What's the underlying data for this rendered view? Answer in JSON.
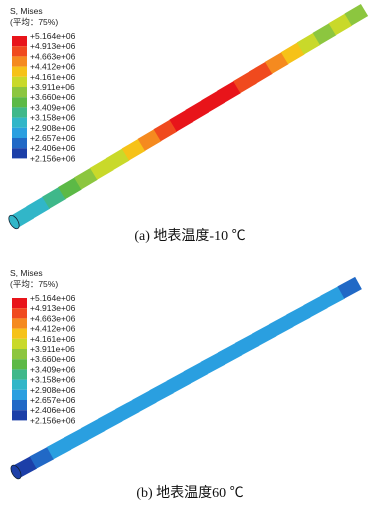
{
  "legend_colors": [
    "#e8141a",
    "#f04a1e",
    "#f58a1f",
    "#f6c218",
    "#c9d92a",
    "#8cc63f",
    "#5cb946",
    "#3fb88a",
    "#31b6c8",
    "#2a9fe0",
    "#2169c6",
    "#1c3fa8"
  ],
  "panels": [
    {
      "legend_title": "S, Mises",
      "legend_subtitle": "(平均：75%)",
      "legend_labels": [
        "+5.164e+06",
        "+4.913e+06",
        "+4.663e+06",
        "+4.412e+06",
        "+4.161e+06",
        "+3.911e+06",
        "+3.660e+06",
        "+3.409e+06",
        "+3.158e+06",
        "+2.908e+06",
        "+2.657e+06",
        "+2.406e+06",
        "+2.156e+06"
      ],
      "caption": "(a) 地表温度-10 ℃"
    },
    {
      "legend_title": "S, Mises",
      "legend_subtitle": "(平均：75%)",
      "legend_labels": [
        "+5.164e+06",
        "+4.913e+06",
        "+4.663e+06",
        "+4.412e+06",
        "+4.161e+06",
        "+3.911e+06",
        "+3.660e+06",
        "+3.409e+06",
        "+3.158e+06",
        "+2.908e+06",
        "+2.657e+06",
        "+2.406e+06",
        "+2.156e+06"
      ],
      "caption": "(b) 地表温度60 ℃"
    }
  ]
}
